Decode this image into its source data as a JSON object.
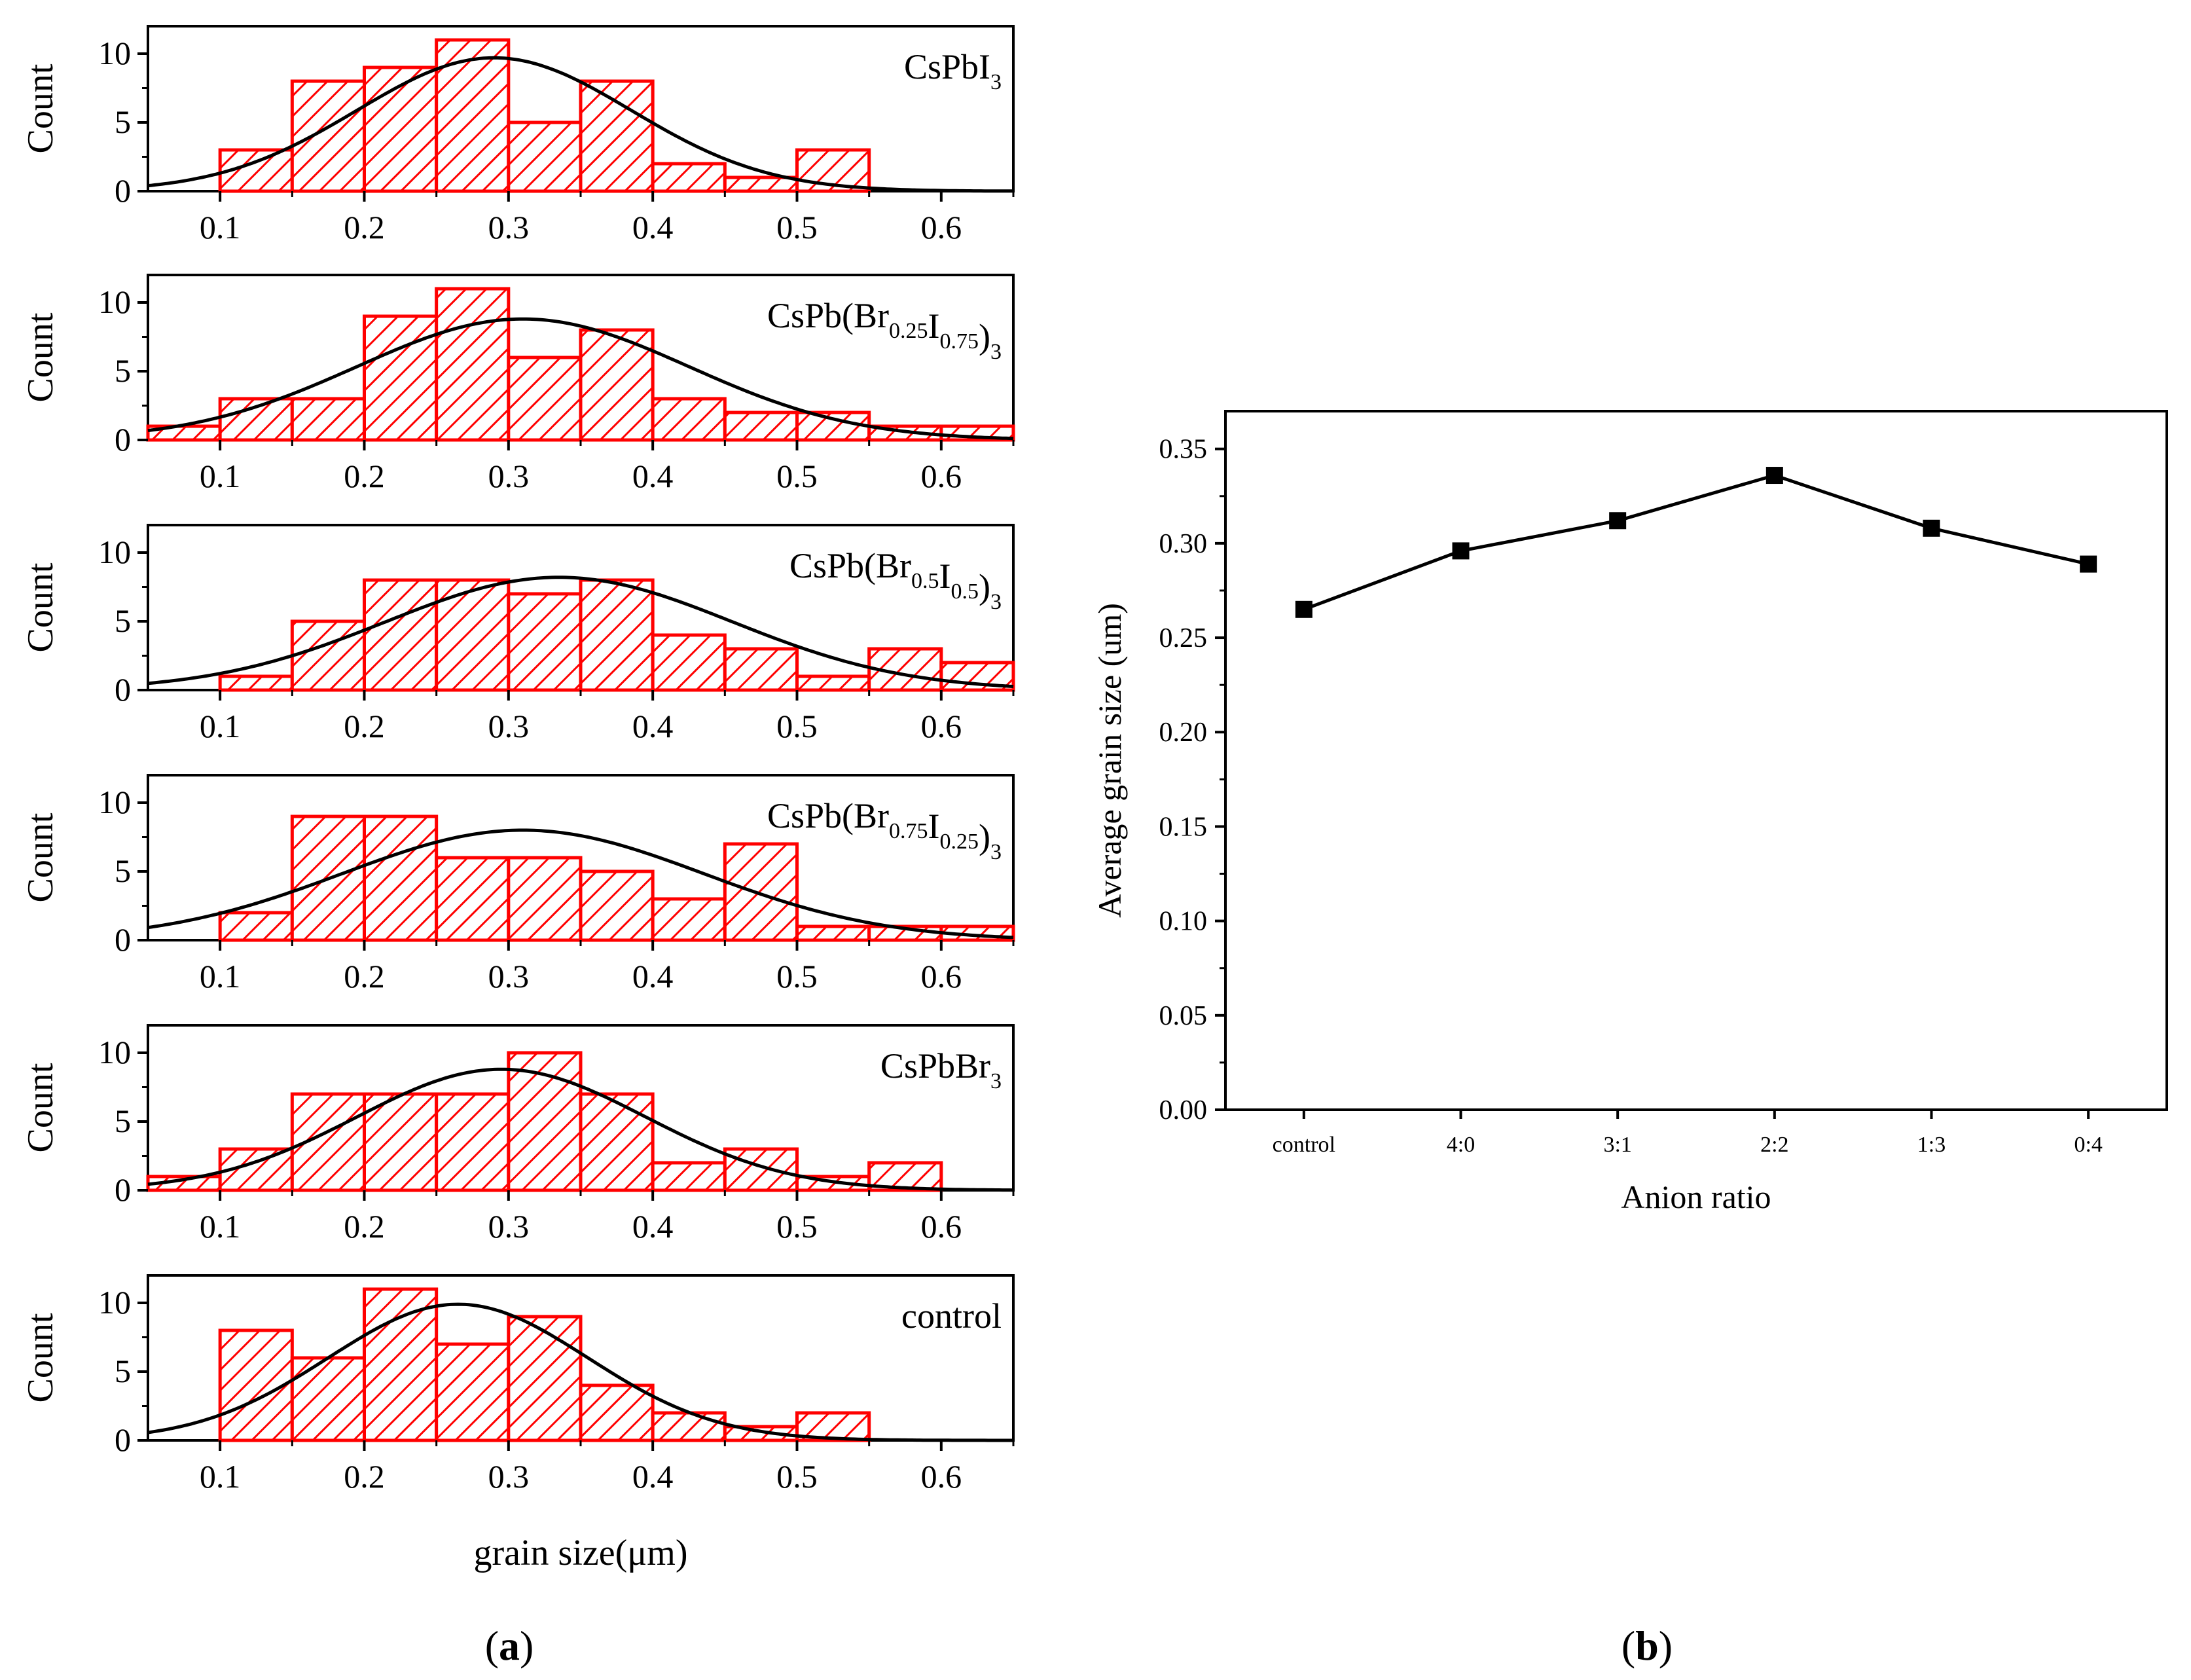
{
  "panels": {
    "a_label": "a",
    "b_label": "b"
  },
  "chart_data": [
    {
      "type": "histogram",
      "panel": "a",
      "xlabel": "grain size(μm)",
      "ylabel": "Count",
      "xlim": [
        0.05,
        0.65
      ],
      "ylim": [
        0,
        12
      ],
      "xticks": [
        "0.1",
        "0.2",
        "0.3",
        "0.4",
        "0.5",
        "0.6"
      ],
      "yticks": [
        "0",
        "5",
        "10"
      ],
      "bin_width": 0.05,
      "bar_color": "#ff0000",
      "fit_color": "#000000",
      "subplots": [
        {
          "label": "CsPbI3",
          "label_parts": [
            {
              "t": "CsPbI"
            },
            {
              "t": "3",
              "sub": true
            }
          ],
          "bins": [
            0.1,
            0.15,
            0.2,
            0.25,
            0.3,
            0.35,
            0.4,
            0.45,
            0.5
          ],
          "counts": [
            3,
            8,
            9,
            11,
            5,
            8,
            2,
            1,
            3
          ],
          "fit": {
            "mean": 0.29,
            "sigma": 0.095,
            "peak": 9.7
          }
        },
        {
          "label": "CsPb(Br0.25I0.75)3",
          "label_parts": [
            {
              "t": "CsPb(Br"
            },
            {
              "t": "0.25",
              "sub": true
            },
            {
              "t": "I"
            },
            {
              "t": "0.75",
              "sub": true
            },
            {
              "t": ")"
            },
            {
              "t": "3",
              "sub": true
            }
          ],
          "bins": [
            0.05,
            0.1,
            0.15,
            0.2,
            0.25,
            0.3,
            0.35,
            0.4,
            0.45,
            0.5,
            0.55,
            0.6
          ],
          "counts": [
            1,
            3,
            3,
            9,
            11,
            6,
            8,
            3,
            2,
            2,
            1,
            1
          ],
          "fit": {
            "mean": 0.31,
            "sigma": 0.115,
            "peak": 8.8
          }
        },
        {
          "label": "CsPb(Br0.5I0.5)3",
          "label_parts": [
            {
              "t": "CsPb(Br"
            },
            {
              "t": "0.5",
              "sub": true
            },
            {
              "t": "I"
            },
            {
              "t": "0.5",
              "sub": true
            },
            {
              "t": ")"
            },
            {
              "t": "3",
              "sub": true
            }
          ],
          "bins": [
            0.1,
            0.15,
            0.2,
            0.25,
            0.3,
            0.35,
            0.4,
            0.45,
            0.5,
            0.55,
            0.6
          ],
          "counts": [
            1,
            5,
            8,
            8,
            7,
            8,
            4,
            3,
            1,
            3,
            2
          ],
          "fit": {
            "mean": 0.335,
            "sigma": 0.12,
            "peak": 8.2
          }
        },
        {
          "label": "CsPb(Br0.75I0.25)3",
          "label_parts": [
            {
              "t": "CsPb(Br"
            },
            {
              "t": "0.75",
              "sub": true
            },
            {
              "t": "I"
            },
            {
              "t": "0.25",
              "sub": true
            },
            {
              "t": ")"
            },
            {
              "t": "3",
              "sub": true
            }
          ],
          "bins": [
            0.1,
            0.15,
            0.2,
            0.25,
            0.3,
            0.35,
            0.4,
            0.45,
            0.5,
            0.55,
            0.6
          ],
          "counts": [
            2,
            9,
            9,
            6,
            6,
            5,
            3,
            7,
            1,
            1,
            1
          ],
          "fit": {
            "mean": 0.31,
            "sigma": 0.125,
            "peak": 8.0
          }
        },
        {
          "label": "CsPbBr3",
          "label_parts": [
            {
              "t": "CsPbBr"
            },
            {
              "t": "3",
              "sub": true
            }
          ],
          "bins": [
            0.05,
            0.1,
            0.15,
            0.2,
            0.25,
            0.3,
            0.35,
            0.4,
            0.45,
            0.5,
            0.55
          ],
          "counts": [
            1,
            3,
            7,
            7,
            7,
            10,
            7,
            2,
            3,
            1,
            2
          ],
          "fit": {
            "mean": 0.295,
            "sigma": 0.1,
            "peak": 8.8
          }
        },
        {
          "label": "control",
          "label_parts": [
            {
              "t": "control"
            }
          ],
          "bins": [
            0.1,
            0.15,
            0.2,
            0.25,
            0.3,
            0.35,
            0.4,
            0.45,
            0.5
          ],
          "counts": [
            8,
            6,
            11,
            7,
            9,
            4,
            2,
            1,
            2
          ],
          "fit": {
            "mean": 0.265,
            "sigma": 0.09,
            "peak": 9.9
          }
        }
      ]
    },
    {
      "type": "line",
      "panel": "b",
      "xlabel": "Anion ratio",
      "ylabel": "Average grain size (um)",
      "categories": [
        "control",
        "4:0",
        "3:1",
        "2:2",
        "1:3",
        "0:4"
      ],
      "values": [
        0.265,
        0.296,
        0.312,
        0.336,
        0.308,
        0.289
      ],
      "ylim": [
        0,
        0.37
      ],
      "yticks": [
        "0.00",
        "0.05",
        "0.10",
        "0.15",
        "0.20",
        "0.25",
        "0.30",
        "0.35"
      ],
      "marker": "square",
      "line_color": "#000000"
    }
  ]
}
